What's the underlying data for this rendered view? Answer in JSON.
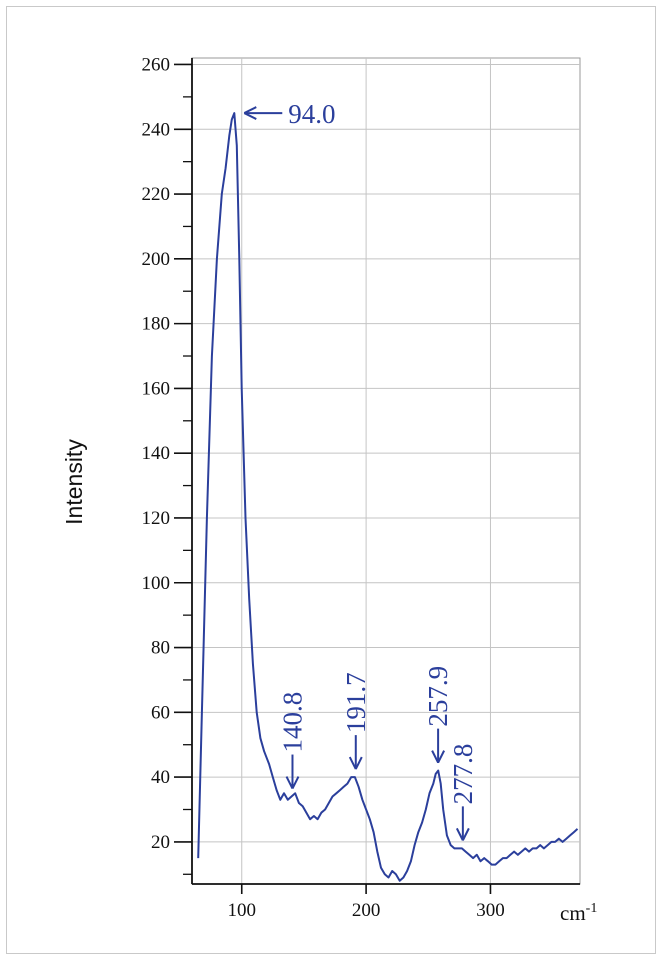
{
  "chart_data": {
    "type": "line",
    "title": "",
    "xlabel": "cm",
    "xlabel_superscript": "-1",
    "ylabel": "Intensity",
    "xlim": [
      60,
      372
    ],
    "ylim": [
      7,
      262
    ],
    "x_ticks": [
      100,
      200,
      300
    ],
    "y_ticks": [
      20,
      40,
      60,
      80,
      100,
      120,
      140,
      160,
      180,
      200,
      220,
      240,
      260
    ],
    "grid": true,
    "legend": "none",
    "line_color": "#2b3f9c",
    "series": [
      {
        "values_x": [
          65,
          68,
          72,
          76,
          80,
          84,
          87,
          90,
          92,
          94,
          96,
          98,
          100,
          103,
          106,
          109,
          112,
          115,
          118,
          120,
          122,
          125,
          128,
          131,
          134,
          137,
          140,
          143,
          146,
          149,
          152,
          155,
          158,
          161,
          164,
          167,
          170,
          173,
          176,
          179,
          182,
          185,
          188,
          191,
          194,
          197,
          200,
          203,
          206,
          209,
          212,
          215,
          218,
          221,
          224,
          227,
          230,
          233,
          236,
          239,
          242,
          245,
          248,
          251,
          254,
          256,
          258,
          260,
          262,
          265,
          268,
          271,
          274,
          277,
          280,
          283,
          286,
          289,
          292,
          295,
          298,
          301,
          304,
          307,
          310,
          313,
          316,
          319,
          322,
          325,
          328,
          331,
          334,
          337,
          340,
          343,
          346,
          349,
          352,
          355,
          358,
          361,
          364,
          367,
          370
        ],
        "values_y": [
          15,
          60,
          120,
          170,
          200,
          220,
          228,
          238,
          243,
          245,
          235,
          200,
          160,
          120,
          95,
          75,
          60,
          52,
          48,
          46,
          44,
          40,
          36,
          33,
          35,
          33,
          34,
          35,
          32,
          31,
          29,
          27,
          28,
          27,
          29,
          30,
          32,
          34,
          35,
          36,
          37,
          38,
          40,
          40,
          37,
          33,
          30,
          27,
          23,
          17,
          12,
          10,
          9,
          11,
          10,
          8,
          9,
          11,
          14,
          19,
          23,
          26,
          30,
          35,
          38,
          41,
          42,
          38,
          30,
          22,
          19,
          18,
          18,
          18,
          17,
          16,
          15,
          16,
          14,
          15,
          14,
          13,
          13,
          14,
          15,
          15,
          16,
          17,
          16,
          17,
          18,
          17,
          18,
          18,
          19,
          18,
          19,
          20,
          20,
          21,
          20,
          21,
          22,
          23,
          24
        ]
      }
    ],
    "annotations": [
      {
        "text": "94.0",
        "x": 94.0,
        "y": 245,
        "style": "horizontal"
      },
      {
        "text": "140.8",
        "x": 140.8,
        "y": 34,
        "style": "vertical"
      },
      {
        "text": "191.7",
        "x": 191.7,
        "y": 40,
        "style": "vertical"
      },
      {
        "text": "257.9",
        "x": 257.9,
        "y": 42,
        "style": "vertical"
      },
      {
        "text": "277.8",
        "x": 277.8,
        "y": 18,
        "style": "vertical"
      }
    ]
  }
}
